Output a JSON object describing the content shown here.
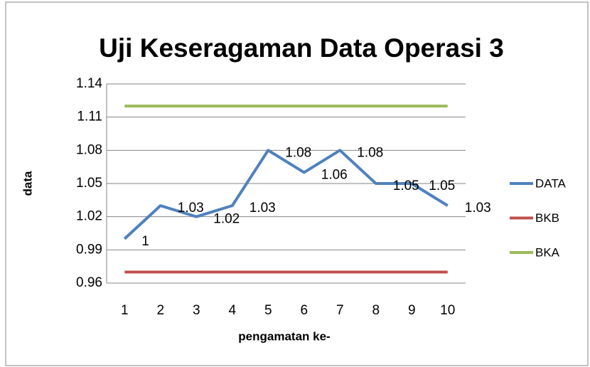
{
  "chart_data": {
    "type": "line",
    "title": "Uji Keseragaman Data Operasi 3",
    "x_label": "pengamatan ke-",
    "y_label": "data",
    "categories": [
      "1",
      "2",
      "3",
      "4",
      "5",
      "6",
      "7",
      "8",
      "9",
      "10"
    ],
    "series": [
      {
        "name": "DATA",
        "color": "#4f81bd",
        "show_labels": true,
        "values": [
          1,
          1.03,
          1.02,
          1.03,
          1.08,
          1.06,
          1.08,
          1.05,
          1.05,
          1.03
        ]
      },
      {
        "name": "BKB",
        "color": "#c0504d",
        "show_labels": false,
        "values": [
          0.97,
          0.97,
          0.97,
          0.97,
          0.97,
          0.97,
          0.97,
          0.97,
          0.97,
          0.97
        ]
      },
      {
        "name": "BKA",
        "color": "#9bbb59",
        "show_labels": false,
        "values": [
          1.12,
          1.12,
          1.12,
          1.12,
          1.12,
          1.12,
          1.12,
          1.12,
          1.12,
          1.12
        ]
      }
    ],
    "ylim": [
      0.96,
      1.14
    ],
    "yticks": [
      0.96,
      0.99,
      1.02,
      1.05,
      1.08,
      1.11,
      1.14
    ],
    "grid": true,
    "legend": "right"
  }
}
